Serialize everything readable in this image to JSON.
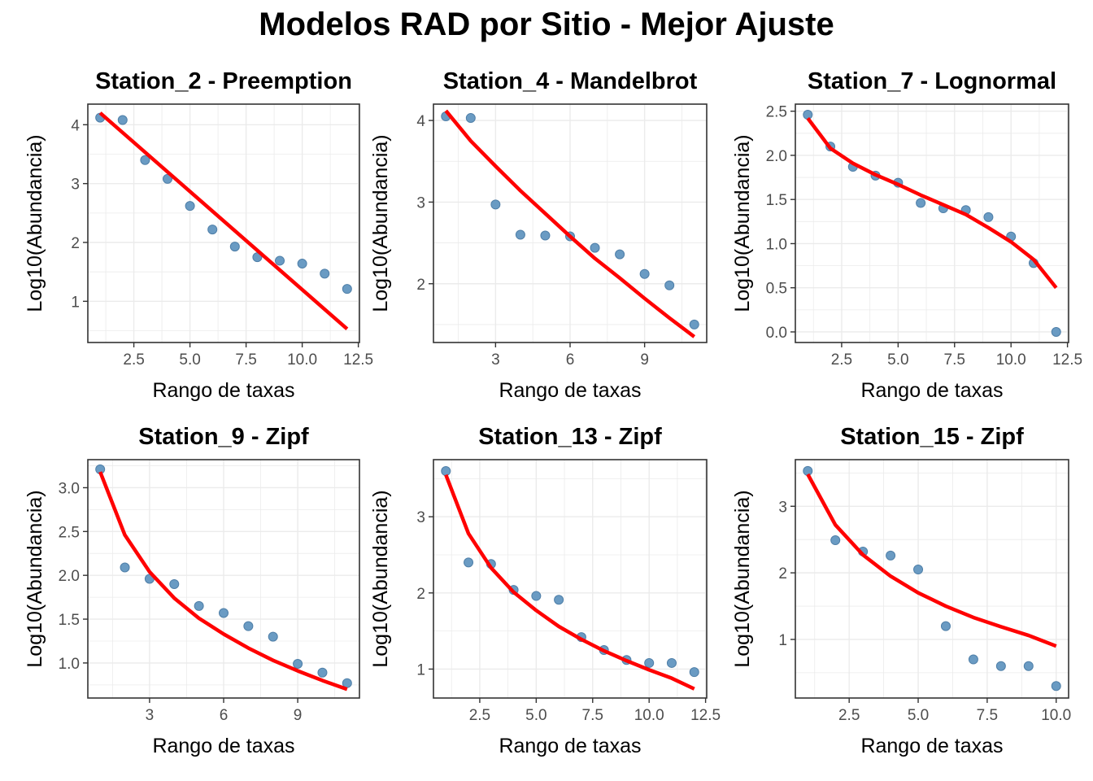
{
  "title": "Modelos RAD por Sitio - Mejor Ajuste",
  "colors": {
    "point": "#6a9bc3",
    "point_stroke": "#4f7fa8",
    "line": "#ff0000",
    "grid": "#ebebeb",
    "axis_text": "#4d4d4d"
  },
  "chart_data": [
    {
      "type": "scatter",
      "title": "Station_2 - Preemption",
      "xlabel": "Rango de taxas",
      "ylabel": "Log10(Abundancia)",
      "xlim": [
        0.45,
        12.55
      ],
      "ylim": [
        0.3,
        4.35
      ],
      "xticks": [
        2.5,
        5.0,
        7.5,
        10.0,
        12.5
      ],
      "xtick_labels": [
        "2.5",
        "5.0",
        "7.5",
        "10.0",
        "12.5"
      ],
      "yticks": [
        1,
        2,
        3,
        4
      ],
      "ytick_labels": [
        "1",
        "2",
        "3",
        "4"
      ],
      "points": {
        "x": [
          1,
          2,
          3,
          4,
          5,
          6,
          7,
          8,
          9,
          10,
          11,
          12
        ],
        "y": [
          4.12,
          4.08,
          3.4,
          3.08,
          2.62,
          2.22,
          1.93,
          1.75,
          1.69,
          1.64,
          1.47,
          1.21
        ]
      },
      "fit": {
        "x": [
          1,
          12
        ],
        "y": [
          4.2,
          0.53
        ]
      }
    },
    {
      "type": "scatter",
      "title": "Station_4 - Mandelbrot",
      "xlabel": "Rango de taxas",
      "ylabel": "Log10(Abundancia)",
      "xlim": [
        0.5,
        11.5
      ],
      "ylim": [
        1.28,
        4.2
      ],
      "xticks": [
        3,
        6,
        9
      ],
      "xtick_labels": [
        "3",
        "6",
        "9"
      ],
      "yticks": [
        2,
        3,
        4
      ],
      "ytick_labels": [
        "2",
        "3",
        "4"
      ],
      "points": {
        "x": [
          1,
          2,
          3,
          4,
          5,
          6,
          7,
          8,
          9,
          10,
          11
        ],
        "y": [
          4.05,
          4.03,
          2.97,
          2.6,
          2.59,
          2.58,
          2.44,
          2.36,
          2.12,
          1.98,
          1.5
        ]
      },
      "fit": {
        "x": [
          1,
          2,
          3,
          4,
          5,
          6,
          7,
          8,
          9,
          10,
          11
        ],
        "y": [
          4.12,
          3.75,
          3.44,
          3.14,
          2.86,
          2.58,
          2.31,
          2.07,
          1.82,
          1.58,
          1.35
        ]
      }
    },
    {
      "type": "scatter",
      "title": "Station_7 - Lognormal",
      "xlabel": "Rango de taxas",
      "ylabel": "Log10(Abundancia)",
      "xlim": [
        0.45,
        12.55
      ],
      "ylim": [
        -0.12,
        2.58
      ],
      "xticks": [
        2.5,
        5.0,
        7.5,
        10.0,
        12.5
      ],
      "xtick_labels": [
        "2.5",
        "5.0",
        "7.5",
        "10.0",
        "12.5"
      ],
      "yticks": [
        0.0,
        0.5,
        1.0,
        1.5,
        2.0,
        2.5
      ],
      "ytick_labels": [
        "0.0",
        "0.5",
        "1.0",
        "1.5",
        "2.0",
        "2.5"
      ],
      "points": {
        "x": [
          1,
          2,
          3,
          4,
          5,
          6,
          7,
          8,
          9,
          10,
          11,
          12
        ],
        "y": [
          2.46,
          2.1,
          1.87,
          1.77,
          1.69,
          1.46,
          1.4,
          1.38,
          1.3,
          1.08,
          0.78,
          0.0
        ]
      },
      "fit": {
        "x": [
          1,
          2,
          3,
          4,
          5,
          6,
          7,
          8,
          9,
          10,
          11,
          12
        ],
        "y": [
          2.42,
          2.08,
          1.91,
          1.78,
          1.67,
          1.55,
          1.44,
          1.33,
          1.18,
          1.02,
          0.82,
          0.5
        ]
      }
    },
    {
      "type": "scatter",
      "title": "Station_9 - Zipf",
      "xlabel": "Rango de taxas",
      "ylabel": "Log10(Abundancia)",
      "xlim": [
        0.5,
        11.5
      ],
      "ylim": [
        0.6,
        3.32
      ],
      "xticks": [
        3,
        6,
        9
      ],
      "xtick_labels": [
        "3",
        "6",
        "9"
      ],
      "yticks": [
        1.0,
        1.5,
        2.0,
        2.5,
        3.0
      ],
      "ytick_labels": [
        "1.0",
        "1.5",
        "2.0",
        "2.5",
        "3.0"
      ],
      "points": {
        "x": [
          1,
          2,
          3,
          4,
          5,
          6,
          7,
          8,
          9,
          10,
          11
        ],
        "y": [
          3.21,
          2.09,
          1.96,
          1.9,
          1.65,
          1.57,
          1.42,
          1.3,
          0.99,
          0.89,
          0.77
        ]
      },
      "fit": {
        "x": [
          1,
          2,
          3,
          4,
          5,
          6,
          7,
          8,
          9,
          10,
          11
        ],
        "y": [
          3.18,
          2.46,
          2.04,
          1.74,
          1.51,
          1.33,
          1.17,
          1.03,
          0.91,
          0.8,
          0.7
        ]
      }
    },
    {
      "type": "scatter",
      "title": "Station_13 - Zipf",
      "xlabel": "Rango de taxas",
      "ylabel": "Log10(Abundancia)",
      "xlim": [
        0.45,
        12.55
      ],
      "ylim": [
        0.62,
        3.75
      ],
      "xticks": [
        2.5,
        5.0,
        7.5,
        10.0,
        12.5
      ],
      "xtick_labels": [
        "2.5",
        "5.0",
        "7.5",
        "10.0",
        "12.5"
      ],
      "yticks": [
        1,
        2,
        3
      ],
      "ytick_labels": [
        "1",
        "2",
        "3"
      ],
      "points": {
        "x": [
          1,
          2,
          3,
          4,
          5,
          6,
          7,
          8,
          9,
          10,
          11,
          12
        ],
        "y": [
          3.6,
          2.4,
          2.38,
          2.04,
          1.96,
          1.91,
          1.42,
          1.25,
          1.12,
          1.08,
          1.08,
          0.96
        ]
      },
      "fit": {
        "x": [
          1,
          2,
          3,
          4,
          5,
          6,
          7,
          8,
          9,
          10,
          11,
          12
        ],
        "y": [
          3.55,
          2.78,
          2.33,
          2.01,
          1.77,
          1.56,
          1.39,
          1.24,
          1.11,
          0.99,
          0.88,
          0.74
        ]
      }
    },
    {
      "type": "scatter",
      "title": "Station_15 - Zipf",
      "xlabel": "Rango de taxas",
      "ylabel": "Log10(Abundancia)",
      "xlim": [
        0.55,
        10.45
      ],
      "ylim": [
        0.12,
        3.7
      ],
      "xticks": [
        2.5,
        5.0,
        7.5,
        10.0
      ],
      "xtick_labels": [
        "2.5",
        "5.0",
        "7.5",
        "10.0"
      ],
      "yticks": [
        1,
        2,
        3
      ],
      "ytick_labels": [
        "1",
        "2",
        "3"
      ],
      "points": {
        "x": [
          1,
          2,
          3,
          4,
          5,
          6,
          7,
          8,
          9,
          10
        ],
        "y": [
          3.53,
          2.49,
          2.32,
          2.26,
          2.05,
          1.2,
          0.7,
          0.6,
          0.6,
          0.3
        ]
      },
      "fit": {
        "x": [
          1,
          2,
          3,
          4,
          5,
          6,
          7,
          8,
          9,
          10
        ],
        "y": [
          3.48,
          2.72,
          2.27,
          1.95,
          1.7,
          1.5,
          1.33,
          1.19,
          1.06,
          0.9
        ]
      }
    }
  ]
}
